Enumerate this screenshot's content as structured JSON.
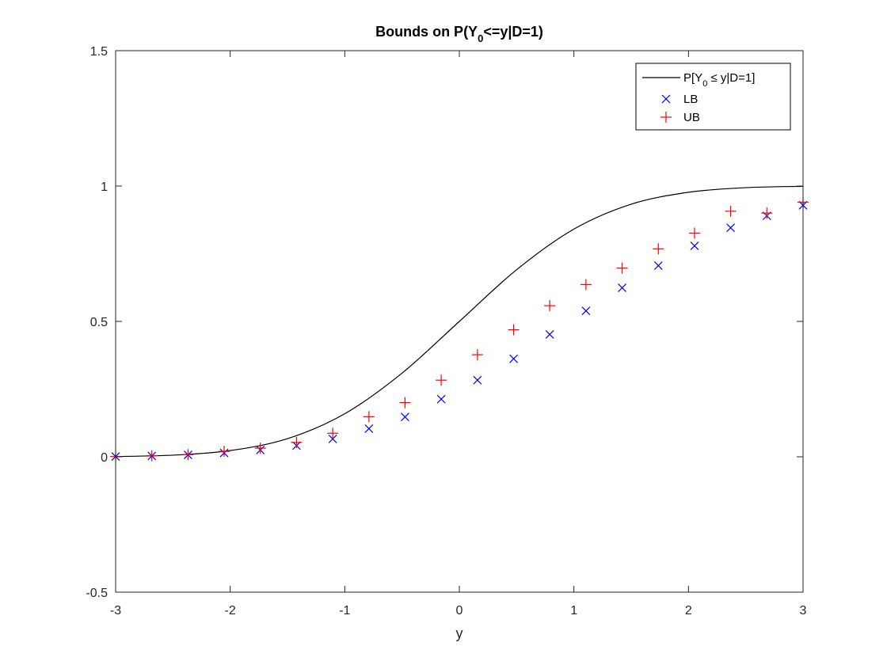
{
  "chart_data": {
    "type": "line",
    "title": {
      "prefix": "Bounds on P(Y",
      "subscript": "0",
      "suffix": "<=y|D=1)"
    },
    "xlabel": "y",
    "ylabel": "",
    "xlim": [
      -3,
      3
    ],
    "ylim": [
      -0.5,
      1.5
    ],
    "xticks": [
      -3,
      -2,
      -1,
      0,
      1,
      2,
      3
    ],
    "yticks": [
      -0.5,
      0,
      0.5,
      1,
      1.5
    ],
    "grid": false,
    "legend_position": "top-right",
    "series": [
      {
        "name": {
          "prefix": "P[Y",
          "subscript": "0",
          "suffix": " ≤ y|D=1]"
        },
        "kind": "line",
        "color": "#000000",
        "x": [
          -3.0,
          -2.5,
          -2.0,
          -1.5,
          -1.0,
          -0.5,
          0.0,
          0.5,
          1.0,
          1.5,
          2.0,
          2.5,
          3.0
        ],
        "y": [
          0.001,
          0.006,
          0.023,
          0.067,
          0.159,
          0.309,
          0.5,
          0.691,
          0.841,
          0.933,
          0.977,
          0.994,
          0.999
        ]
      },
      {
        "name": "LB",
        "kind": "marker",
        "marker": "x",
        "color": "#0000ff",
        "x": [
          -3.0,
          -2.684,
          -2.368,
          -2.053,
          -1.737,
          -1.421,
          -1.105,
          -0.789,
          -0.474,
          -0.158,
          0.158,
          0.474,
          0.789,
          1.105,
          1.421,
          1.737,
          2.053,
          2.368,
          2.684,
          3.0
        ],
        "y": [
          0.001,
          0.003,
          0.007,
          0.014,
          0.025,
          0.041,
          0.066,
          0.104,
          0.147,
          0.213,
          0.283,
          0.362,
          0.452,
          0.539,
          0.624,
          0.706,
          0.779,
          0.846,
          0.89,
          0.929
        ]
      },
      {
        "name": "UB",
        "kind": "marker",
        "marker": "+",
        "color": "#ff0000",
        "x": [
          -3.0,
          -2.684,
          -2.368,
          -2.053,
          -1.737,
          -1.421,
          -1.105,
          -0.789,
          -0.474,
          -0.158,
          0.158,
          0.474,
          0.789,
          1.105,
          1.421,
          1.737,
          2.053,
          2.368,
          2.684,
          3.0
        ],
        "y": [
          0.001,
          0.004,
          0.008,
          0.02,
          0.032,
          0.053,
          0.087,
          0.148,
          0.2,
          0.283,
          0.377,
          0.469,
          0.558,
          0.636,
          0.697,
          0.768,
          0.826,
          0.907,
          0.9,
          0.94
        ]
      }
    ]
  }
}
